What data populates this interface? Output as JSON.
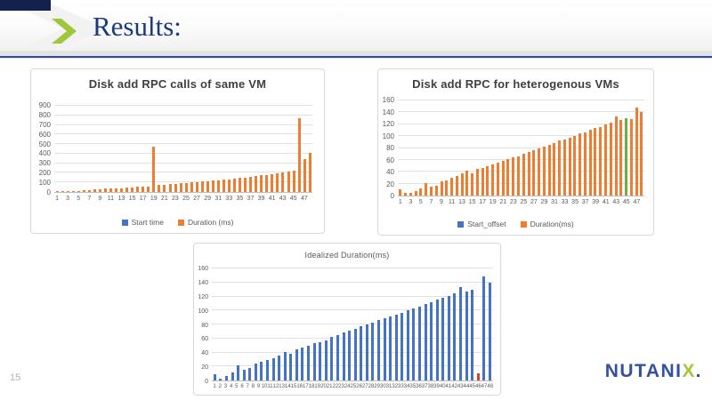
{
  "header": {
    "title": "Results:",
    "accent_color": "#13214d",
    "chevron_color": "#9ec73c"
  },
  "footer": {
    "page_number": "15",
    "logo_text_main": "NUTANI",
    "logo_text_x": "X",
    "logo_color": "#33519f",
    "logo_x_color": "#a6c73c"
  },
  "chart_data": [
    {
      "type": "bar",
      "title": "Disk add RPC calls of same VM",
      "ylim": [
        0,
        900
      ],
      "ystep": 100,
      "grid": true,
      "legend_position": "bottom",
      "bar_color": "#ED7D31",
      "highlight": null,
      "legend": [
        {
          "label": "Start time",
          "color": "#4472C4"
        },
        {
          "label": "Duration (ms)",
          "color": "#ED7D31"
        }
      ],
      "categories": [
        1,
        2,
        3,
        4,
        5,
        6,
        7,
        8,
        9,
        10,
        11,
        12,
        13,
        14,
        15,
        16,
        17,
        18,
        19,
        20,
        21,
        22,
        23,
        24,
        25,
        26,
        27,
        28,
        29,
        30,
        31,
        32,
        33,
        34,
        35,
        36,
        37,
        38,
        39,
        40,
        41,
        42,
        43,
        44,
        45,
        46,
        47,
        48
      ],
      "xtick_labels": [
        "1",
        "3",
        "5",
        "7",
        "9",
        "11",
        "13",
        "15",
        "17",
        "19",
        "21",
        "23",
        "25",
        "27",
        "29",
        "31",
        "33",
        "35",
        "37",
        "39",
        "41",
        "43",
        "45",
        "47"
      ],
      "values": [
        8,
        10,
        6,
        6,
        14,
        18,
        22,
        26,
        30,
        33,
        35,
        36,
        40,
        44,
        48,
        52,
        57,
        60,
        475,
        75,
        78,
        82,
        87,
        90,
        94,
        98,
        103,
        108,
        113,
        118,
        123,
        128,
        133,
        138,
        148,
        153,
        158,
        165,
        172,
        180,
        188,
        196,
        205,
        213,
        220,
        770,
        340,
        410
      ]
    },
    {
      "type": "bar",
      "title": "Disk add RPC for heterogenous VMs",
      "ylim": [
        0,
        160
      ],
      "ystep": 20,
      "grid": true,
      "legend_position": "bottom",
      "bar_color": "#ED7D31",
      "highlight": {
        "index": 44,
        "color": "#70AD47"
      },
      "legend": [
        {
          "label": "Start_offset",
          "color": "#4472C4"
        },
        {
          "label": "Duration(ms)",
          "color": "#ED7D31"
        }
      ],
      "categories": [
        1,
        2,
        3,
        4,
        5,
        6,
        7,
        8,
        9,
        10,
        11,
        12,
        13,
        14,
        15,
        16,
        17,
        18,
        19,
        20,
        21,
        22,
        23,
        24,
        25,
        26,
        27,
        28,
        29,
        30,
        31,
        32,
        33,
        34,
        35,
        36,
        37,
        38,
        39,
        40,
        41,
        42,
        43,
        44,
        45,
        46,
        47,
        48
      ],
      "xtick_labels": [
        "1",
        "3",
        "5",
        "7",
        "9",
        "11",
        "13",
        "15",
        "17",
        "19",
        "21",
        "23",
        "25",
        "27",
        "29",
        "31",
        "33",
        "35",
        "37",
        "39",
        "41",
        "43",
        "45",
        "47"
      ],
      "values": [
        10,
        4,
        5,
        8,
        12,
        21,
        15,
        17,
        24,
        26,
        30,
        33,
        37,
        42,
        38,
        45,
        47,
        50,
        53,
        55,
        58,
        62,
        64,
        66,
        70,
        73,
        76,
        80,
        83,
        85,
        88,
        92,
        94,
        97,
        100,
        104,
        106,
        110,
        113,
        115,
        120,
        122,
        133,
        127,
        130,
        128,
        148,
        140
      ]
    },
    {
      "type": "bar",
      "title": "Idealized Duration(ms)",
      "ylim": [
        0,
        160
      ],
      "ystep": 20,
      "grid": true,
      "legend_position": "none",
      "bar_color": "#4472C4",
      "highlight": {
        "index": 45,
        "color": "#E03C31"
      },
      "legend": [],
      "categories": [
        1,
        2,
        3,
        4,
        5,
        6,
        7,
        8,
        9,
        10,
        11,
        12,
        13,
        14,
        15,
        16,
        17,
        18,
        19,
        20,
        21,
        22,
        23,
        24,
        25,
        26,
        27,
        28,
        29,
        30,
        31,
        32,
        33,
        34,
        35,
        36,
        37,
        38,
        39,
        40,
        41,
        42,
        43,
        44,
        45,
        46,
        47,
        48
      ],
      "xtick_labels": [
        "1",
        "2",
        "3",
        "4",
        "5",
        "6",
        "7",
        "8",
        "9",
        "10",
        "11",
        "12",
        "13",
        "14",
        "15",
        "16",
        "17",
        "18",
        "19",
        "20",
        "21",
        "22",
        "23",
        "24",
        "25",
        "26",
        "27",
        "28",
        "29",
        "30",
        "31",
        "32",
        "33",
        "34",
        "35",
        "36",
        "37",
        "38",
        "39",
        "40",
        "41",
        "42",
        "43",
        "44",
        "45",
        "46",
        "47",
        "48"
      ],
      "values": [
        9,
        3,
        6,
        12,
        21,
        15,
        18,
        24,
        27,
        29,
        32,
        35,
        41,
        38,
        44,
        47,
        50,
        53,
        55,
        57,
        62,
        65,
        68,
        71,
        74,
        77,
        80,
        82,
        86,
        89,
        92,
        94,
        97,
        100,
        103,
        106,
        109,
        112,
        115,
        118,
        121,
        124,
        133,
        127,
        130,
        10,
        148,
        140
      ]
    }
  ]
}
